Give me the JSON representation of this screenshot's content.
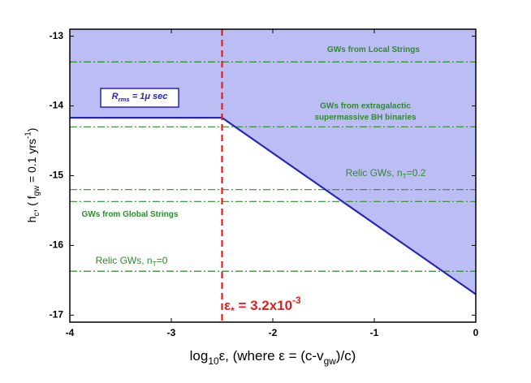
{
  "chart_data": {
    "type": "line",
    "x_label": [
      "log",
      "10",
      "ε, (where ε = (c-v",
      "gw",
      ")/c)"
    ],
    "y_label": [
      "h",
      "c",
      ", ( f",
      "gw",
      " = 0.1 yrs",
      "-1",
      ")"
    ],
    "xlim": [
      -4,
      0
    ],
    "ylim": [
      -17.1,
      -12.9
    ],
    "xticks": [
      -4,
      -3,
      -2,
      -1,
      0
    ],
    "yticks": [
      -17,
      -16,
      -15,
      -14,
      -13
    ],
    "series": [
      {
        "x": [
          -4,
          -2.5,
          0
        ],
        "values": [
          -14.17,
          -14.17,
          -16.7
        ],
        "color": "#2626b8",
        "fill": "#bdbdf5"
      }
    ],
    "hlines": {
      "values": [
        -13.37,
        -14.3,
        -15.2,
        -15.37,
        -16.37
      ],
      "color": "#2e8b2e"
    },
    "vline": {
      "value": -2.5,
      "color": "#e02020"
    },
    "annotations": {
      "local": [
        "GWs from Local Strings"
      ],
      "bh": [
        "GWs from extragalactic",
        "supermassive BH binaries"
      ],
      "relic02": [
        "Relic GWs, n",
        "T",
        "=0.2"
      ],
      "global": [
        "GWs from Global Strings"
      ],
      "relic0": [
        "Relic GWs, n",
        "T",
        "=0"
      ],
      "rrms": [
        "R",
        "rms",
        " = 1μ sec"
      ],
      "eps": [
        "ε",
        "*",
        " = 3.2x10",
        "-3"
      ]
    }
  }
}
